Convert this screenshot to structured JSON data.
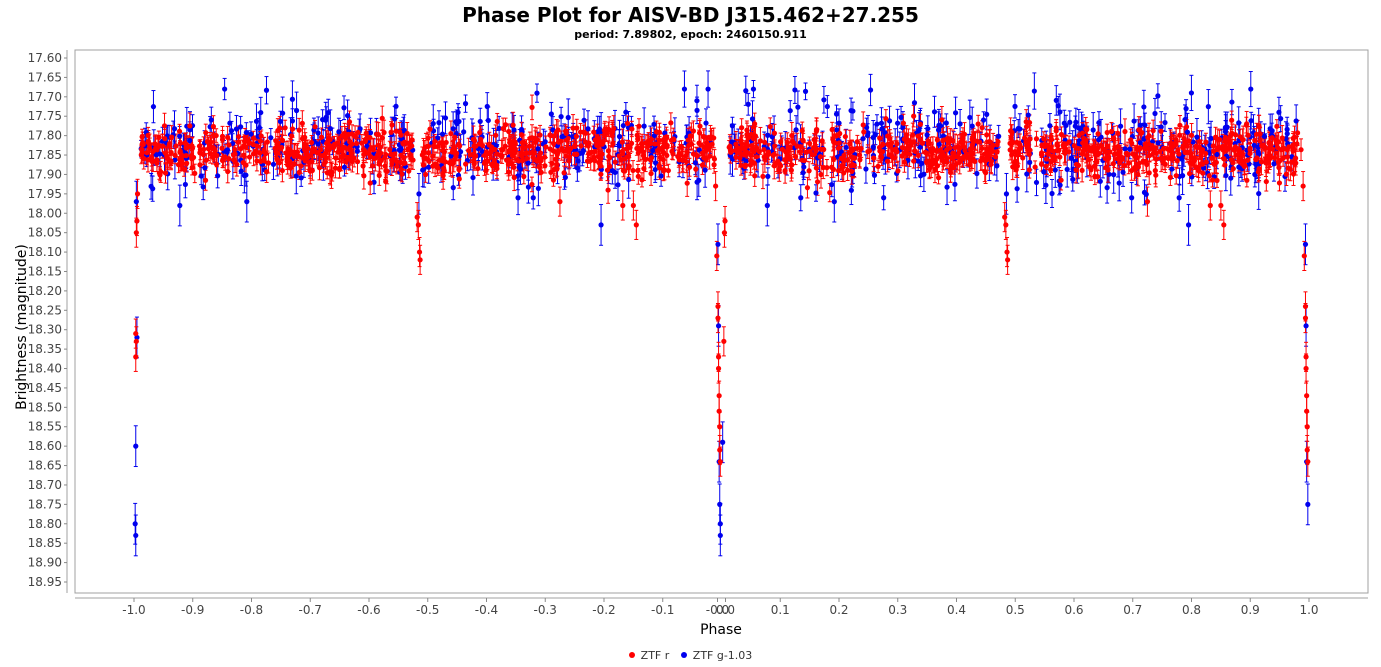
{
  "colors": {
    "ztf_r": "#ff0000",
    "ztf_g": "#0000ee",
    "frame": "#a0a0a0",
    "axis": "#666666"
  },
  "chart_data": {
    "type": "scatter",
    "title": "Phase Plot for AISV-BD J315.462+27.255",
    "subtitle": "period: 7.89802, epoch: 2460150.911",
    "xlabel": "Phase",
    "ylabel": "Brightness (magnitude)",
    "xlim": [
      -1.1,
      1.1
    ],
    "ylim": [
      18.99,
      17.59
    ],
    "y_inverted": true,
    "grid": false,
    "legend_position": "bottom",
    "x_ticks": [
      "-1.0",
      "-0.9",
      "-0.8",
      "-0.7",
      "-0.6",
      "-0.5",
      "-0.4",
      "-0.3",
      "-0.2",
      "-0.1",
      "-0.0",
      "0.0",
      "0.1",
      "0.2",
      "0.3",
      "0.4",
      "0.5",
      "0.6",
      "0.7",
      "0.8",
      "0.9",
      "1.0"
    ],
    "x_tick_values": [
      -1.0,
      -0.9,
      -0.8,
      -0.7,
      -0.6,
      -0.5,
      -0.4,
      -0.3,
      -0.2,
      -0.1,
      -0.0,
      0.0,
      0.1,
      0.2,
      0.3,
      0.4,
      0.5,
      0.6,
      0.7,
      0.8,
      0.9,
      1.0
    ],
    "y_ticks": [
      "17.60",
      "17.65",
      "17.70",
      "17.75",
      "17.80",
      "17.85",
      "17.90",
      "17.95",
      "18.00",
      "18.05",
      "18.10",
      "18.15",
      "18.20",
      "18.25",
      "18.30",
      "18.35",
      "18.40",
      "18.45",
      "18.50",
      "18.55",
      "18.60",
      "18.65",
      "18.70",
      "18.75",
      "18.80",
      "18.85",
      "18.90",
      "18.95"
    ],
    "series": [
      {
        "name": "ZTF r",
        "color": "#ff0000",
        "baseline_mag": 17.84,
        "baseline_scatter": 0.03,
        "typical_error": 0.025,
        "eclipse_points": [
          {
            "x": -0.996,
            "y": 18.05
          },
          {
            "x": -0.995,
            "y": 18.02
          },
          {
            "x": -0.994,
            "y": 17.95
          },
          {
            "x": -0.997,
            "y": 18.31
          },
          {
            "x": -0.996,
            "y": 18.33
          },
          {
            "x": -0.997,
            "y": 18.37
          },
          {
            "x": -0.518,
            "y": 18.01
          },
          {
            "x": -0.516,
            "y": 18.03
          },
          {
            "x": -0.514,
            "y": 18.1
          },
          {
            "x": -0.513,
            "y": 18.12
          },
          {
            "x": -0.168,
            "y": 17.98
          },
          {
            "x": -0.145,
            "y": 18.03
          },
          {
            "x": -0.15,
            "y": 17.98
          },
          {
            "x": -0.275,
            "y": 17.97
          },
          {
            "x": -0.01,
            "y": 17.93
          },
          {
            "x": -0.008,
            "y": 18.11
          },
          {
            "x": -0.006,
            "y": 18.24
          },
          {
            "x": -0.006,
            "y": 18.27
          },
          {
            "x": -0.005,
            "y": 18.37
          },
          {
            "x": -0.005,
            "y": 18.4
          },
          {
            "x": -0.004,
            "y": 18.47
          },
          {
            "x": -0.004,
            "y": 18.51
          },
          {
            "x": -0.003,
            "y": 18.55
          },
          {
            "x": -0.003,
            "y": 18.61
          },
          {
            "x": -0.002,
            "y": 18.64
          },
          {
            "x": 0.004,
            "y": 18.33
          },
          {
            "x": 0.005,
            "y": 18.05
          },
          {
            "x": 0.006,
            "y": 18.02
          },
          {
            "x": 0.482,
            "y": 18.01
          },
          {
            "x": 0.484,
            "y": 18.03
          },
          {
            "x": 0.486,
            "y": 18.1
          },
          {
            "x": 0.487,
            "y": 18.12
          },
          {
            "x": 0.832,
            "y": 17.98
          },
          {
            "x": 0.855,
            "y": 18.03
          },
          {
            "x": 0.85,
            "y": 17.98
          },
          {
            "x": 0.725,
            "y": 17.97
          },
          {
            "x": 0.99,
            "y": 17.93
          },
          {
            "x": 0.992,
            "y": 18.11
          },
          {
            "x": 0.994,
            "y": 18.24
          },
          {
            "x": 0.994,
            "y": 18.27
          },
          {
            "x": 0.995,
            "y": 18.37
          },
          {
            "x": 0.995,
            "y": 18.4
          },
          {
            "x": 0.996,
            "y": 18.47
          },
          {
            "x": 0.996,
            "y": 18.51
          },
          {
            "x": 0.997,
            "y": 18.55
          },
          {
            "x": 0.997,
            "y": 18.61
          },
          {
            "x": 0.998,
            "y": 18.64
          }
        ]
      },
      {
        "name": "ZTF g-1.03",
        "color": "#0000ee",
        "baseline_mag": 17.83,
        "baseline_scatter": 0.05,
        "typical_error": 0.035,
        "eclipse_points": [
          {
            "x": -0.996,
            "y": 17.97
          },
          {
            "x": -0.995,
            "y": 18.32
          },
          {
            "x": -0.997,
            "y": 18.6
          },
          {
            "x": -0.998,
            "y": 18.8
          },
          {
            "x": -0.997,
            "y": 18.83
          },
          {
            "x": -0.922,
            "y": 17.98
          },
          {
            "x": -0.808,
            "y": 17.97
          },
          {
            "x": -0.515,
            "y": 17.95
          },
          {
            "x": -0.205,
            "y": 18.03
          },
          {
            "x": -0.006,
            "y": 18.08
          },
          {
            "x": -0.005,
            "y": 18.29
          },
          {
            "x": -0.004,
            "y": 18.64
          },
          {
            "x": -0.003,
            "y": 18.75
          },
          {
            "x": -0.002,
            "y": 18.8
          },
          {
            "x": -0.002,
            "y": 18.83
          },
          {
            "x": 0.002,
            "y": 18.59
          },
          {
            "x": 0.078,
            "y": 17.98
          },
          {
            "x": 0.192,
            "y": 17.97
          },
          {
            "x": 0.485,
            "y": 17.95
          },
          {
            "x": 0.795,
            "y": 18.03
          },
          {
            "x": 0.994,
            "y": 18.08
          },
          {
            "x": 0.995,
            "y": 18.29
          },
          {
            "x": 0.996,
            "y": 18.64
          },
          {
            "x": 0.998,
            "y": 18.75
          }
        ]
      }
    ]
  }
}
